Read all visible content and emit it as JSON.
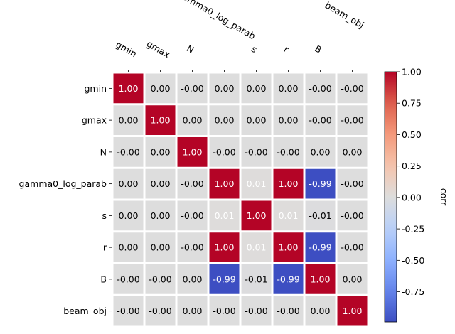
{
  "chart_data": {
    "type": "heatmap",
    "labels": [
      "gmin",
      "gmax",
      "N",
      "gamma0_log_parab",
      "s",
      "r",
      "B",
      "beam_obj"
    ],
    "values": [
      [
        1.0,
        0.0,
        -0.0,
        0.0,
        0.0,
        0.0,
        -0.0,
        -0.0
      ],
      [
        0.0,
        1.0,
        0.0,
        0.0,
        0.0,
        0.0,
        -0.0,
        -0.0
      ],
      [
        -0.0,
        0.0,
        1.0,
        -0.0,
        -0.0,
        -0.0,
        0.0,
        0.0
      ],
      [
        0.0,
        0.0,
        -0.0,
        1.0,
        0.01,
        1.0,
        -0.99,
        -0.0
      ],
      [
        0.0,
        0.0,
        -0.0,
        0.01,
        1.0,
        0.01,
        -0.01,
        -0.0
      ],
      [
        0.0,
        0.0,
        -0.0,
        1.0,
        0.01,
        1.0,
        -0.99,
        -0.0
      ],
      [
        -0.0,
        -0.0,
        0.0,
        -0.99,
        -0.01,
        -0.99,
        1.0,
        0.0
      ],
      [
        -0.0,
        -0.0,
        0.0,
        -0.0,
        -0.0,
        -0.0,
        0.0,
        1.0
      ]
    ],
    "cell_labels": [
      [
        "1.00",
        "0.00",
        "-0.00",
        "0.00",
        "0.00",
        "0.00",
        "-0.00",
        "-0.00"
      ],
      [
        "0.00",
        "1.00",
        "0.00",
        "0.00",
        "0.00",
        "0.00",
        "-0.00",
        "-0.00"
      ],
      [
        "-0.00",
        "0.00",
        "1.00",
        "-0.00",
        "-0.00",
        "-0.00",
        "0.00",
        "0.00"
      ],
      [
        "0.00",
        "0.00",
        "-0.00",
        "1.00",
        "0.01",
        "1.00",
        "-0.99",
        "-0.00"
      ],
      [
        "0.00",
        "0.00",
        "-0.00",
        "0.01",
        "1.00",
        "0.01",
        "-0.01",
        "-0.00"
      ],
      [
        "0.00",
        "0.00",
        "-0.00",
        "1.00",
        "0.01",
        "1.00",
        "-0.99",
        "-0.00"
      ],
      [
        "-0.00",
        "-0.00",
        "0.00",
        "-0.99",
        "-0.01",
        "-0.99",
        "1.00",
        "0.00"
      ],
      [
        "-0.00",
        "-0.00",
        "0.00",
        "-0.00",
        "-0.00",
        "-0.00",
        "0.00",
        "1.00"
      ]
    ],
    "colormap": "coolwarm",
    "vmin": -1.0,
    "vmax": 1.0,
    "colorbar_label": "corr",
    "colorbar_ticks": [
      "1.00",
      "0.75",
      "0.50",
      "0.25",
      "0.00",
      "-0.25",
      "-0.50",
      "-0.75"
    ],
    "colorbar_tick_values": [
      1.0,
      0.75,
      0.5,
      0.25,
      0.0,
      -0.25,
      -0.5,
      -0.75
    ],
    "colorbar_min": -0.99,
    "colorbar_max": 1.0,
    "x_tick_position": "top",
    "grid": false
  }
}
